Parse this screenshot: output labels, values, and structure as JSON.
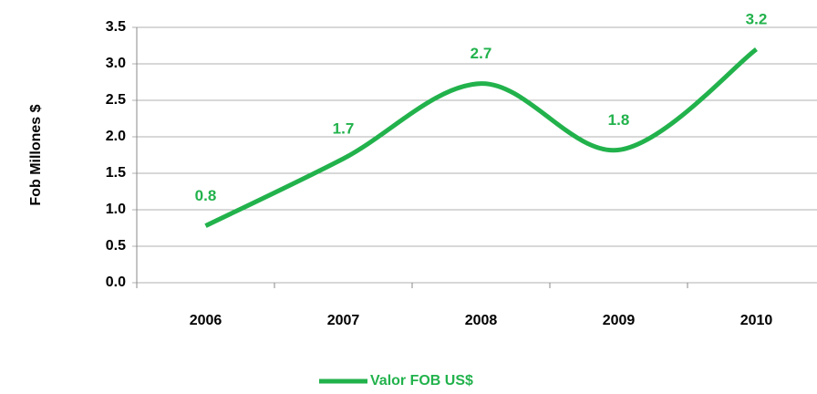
{
  "chart_data": {
    "type": "line",
    "y_label": "Fob Millones $",
    "categories": [
      "2006",
      "2007",
      "2008",
      "2009",
      "2010"
    ],
    "series": [
      {
        "name": "Valor FOB US$",
        "color": "#22b24c",
        "values": [
          0.78,
          1.7,
          2.73,
          1.82,
          3.2
        ],
        "value_labels": [
          "0.8",
          "1.7",
          "2.7",
          "1.8",
          "3.2"
        ]
      }
    ],
    "ylim": [
      0,
      3.5
    ],
    "yticks": [
      {
        "value": 0,
        "label": "0.0"
      },
      0.5,
      {
        "value": 1,
        "label": "1.0"
      },
      1.5,
      {
        "value": 2,
        "label": "2.0"
      },
      2.5,
      {
        "value": 3,
        "label": "3.0"
      },
      3.5
    ],
    "grid": true,
    "smooth": true,
    "legend": "bottom"
  }
}
